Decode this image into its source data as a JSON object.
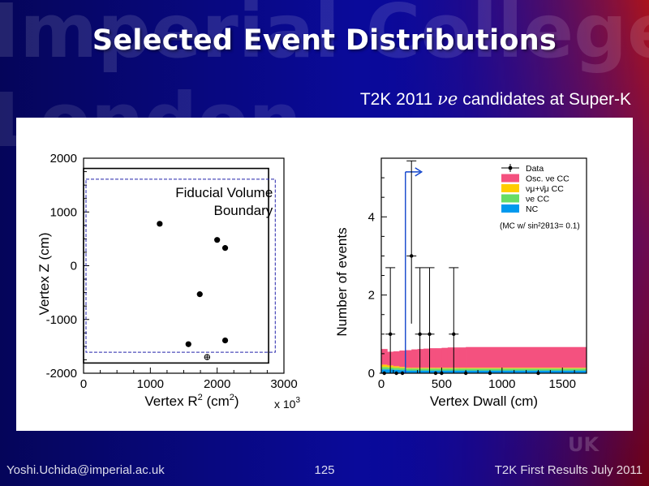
{
  "slide": {
    "title": "Selected Event Distributions",
    "subtitle_prefix": "T2K 2011 ",
    "subtitle_nu": "νe",
    "subtitle_suffix": " candidates at Super-K",
    "watermark_lines": [
      "Imperial College",
      "London"
    ],
    "watermark_uk": "UK",
    "footer": {
      "left": "Yoshi.Uchida@imperial.ac.uk",
      "center": "125",
      "right": "T2K First Results July 2011"
    }
  },
  "colors": {
    "osc_nue_cc": "#f4517f",
    "numu_cc": "#ffcc00",
    "nue_cc": "#66dd66",
    "nc": "#0099ee",
    "fiducial_line": "#2222aa"
  },
  "chart_data": [
    {
      "type": "scatter",
      "xlabel": "Vertex R² (cm²)",
      "xlabel_main": "Vertex R",
      "xlabel_sup": "2",
      "xlabel_unit": " (cm",
      "xlabel_unit_sup": "2",
      "xlabel_close": ")",
      "ylabel": "Vertex Z (cm)",
      "x_multiplier": "x 10",
      "x_multiplier_exp": "3",
      "xlim": [
        0,
        3000
      ],
      "ylim": [
        -2000,
        2000
      ],
      "xticks": [
        "0",
        "1000",
        "2000",
        "3000"
      ],
      "yticks": [
        "2000",
        "1000",
        "0",
        "-1000",
        "-2000"
      ],
      "annotation": [
        "Fiducial Volume",
        "Boundary"
      ],
      "inner_detector": {
        "r2_max": 2770,
        "z_min": -1810,
        "z_max": 1810
      },
      "fiducial_volume": {
        "r2_max": 2870,
        "z_min": -1610,
        "z_max": 1610
      },
      "points": [
        {
          "x": 1140,
          "y": 780
        },
        {
          "x": 2000,
          "y": 480
        },
        {
          "x": 2120,
          "y": 330
        },
        {
          "x": 1740,
          "y": -530
        },
        {
          "x": 1570,
          "y": -1460
        },
        {
          "x": 2120,
          "y": -1390
        }
      ],
      "open_points": [
        {
          "x": 1850,
          "y": -1700
        }
      ]
    },
    {
      "type": "bar",
      "xlabel": "Vertex Dwall (cm)",
      "ylabel": "Number of events",
      "xlim": [
        0,
        1700
      ],
      "ylim": [
        0,
        5.5
      ],
      "xticks": [
        "0",
        "500",
        "1000",
        "1500"
      ],
      "yticks": [
        "0",
        "2",
        "4"
      ],
      "legend_position": "top-right",
      "legend": [
        {
          "label": "Data",
          "kind": "marker"
        },
        {
          "label": "Osc. νe CC",
          "kind": "fill",
          "color_key": "osc_nue_cc"
        },
        {
          "label": "νμ+ν̄μ CC",
          "kind": "fill",
          "color_key": "numu_cc"
        },
        {
          "label": "νe CC",
          "kind": "fill",
          "color_key": "nue_cc"
        },
        {
          "label": "NC",
          "kind": "fill",
          "color_key": "nc"
        }
      ],
      "legend_note": "(MC w/ sin²2θ13= 0.1)",
      "cut_dwall": 200,
      "bin_edges": [
        0,
        50,
        100,
        150,
        200,
        250,
        300,
        350,
        400,
        450,
        500,
        550,
        600,
        650,
        700,
        1700
      ],
      "mc_stack": {
        "nc": [
          0.1,
          0.1,
          0.09,
          0.08,
          0.07,
          0.07,
          0.07,
          0.07,
          0.07,
          0.07,
          0.07,
          0.07,
          0.07,
          0.07,
          0.07
        ],
        "nue_cc": [
          0.06,
          0.05,
          0.05,
          0.05,
          0.05,
          0.05,
          0.05,
          0.05,
          0.05,
          0.05,
          0.05,
          0.05,
          0.05,
          0.05,
          0.05
        ],
        "numu_cc": [
          0.06,
          0.05,
          0.04,
          0.03,
          0.02,
          0.02,
          0.02,
          0.02,
          0.02,
          0.02,
          0.02,
          0.02,
          0.02,
          0.02,
          0.02
        ],
        "osc_nue_cc": [
          0.4,
          0.35,
          0.38,
          0.42,
          0.45,
          0.47,
          0.48,
          0.49,
          0.5,
          0.5,
          0.51,
          0.52,
          0.52,
          0.52,
          0.53
        ]
      },
      "data_points": [
        {
          "x": 25,
          "y": 0
        },
        {
          "x": 75,
          "y": 1
        },
        {
          "x": 125,
          "y": 0
        },
        {
          "x": 175,
          "y": 0
        },
        {
          "x": 250,
          "y": 3
        },
        {
          "x": 320,
          "y": 1
        },
        {
          "x": 400,
          "y": 1
        },
        {
          "x": 450,
          "y": 0
        },
        {
          "x": 500,
          "y": 0
        },
        {
          "x": 600,
          "y": 1
        },
        {
          "x": 700,
          "y": 0
        },
        {
          "x": 900,
          "y": 0
        },
        {
          "x": 1300,
          "y": 0
        }
      ]
    }
  ]
}
